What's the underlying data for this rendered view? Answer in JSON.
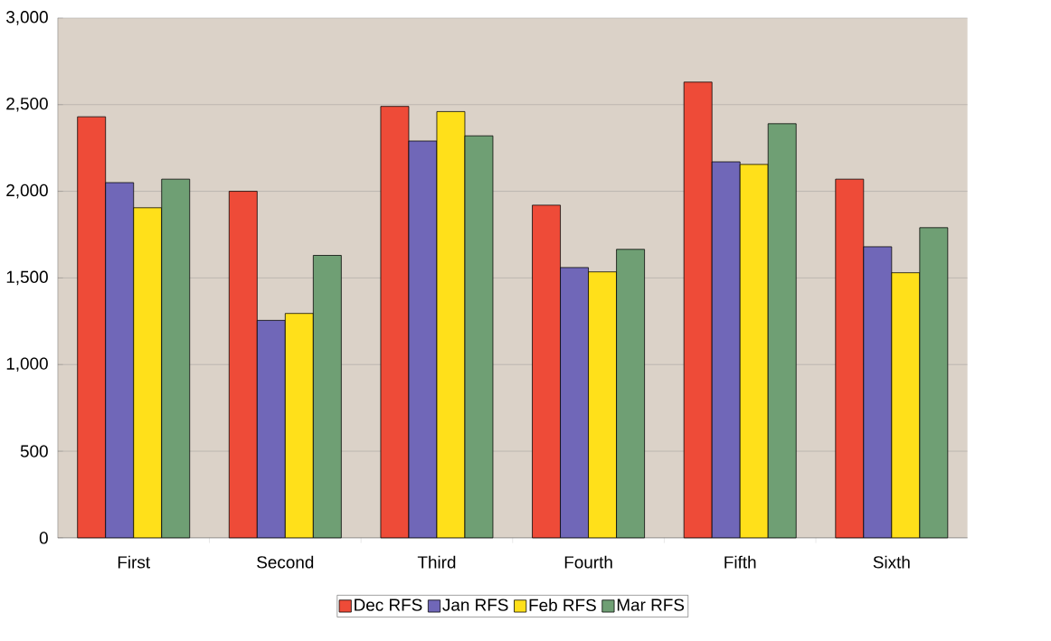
{
  "chart_data": {
    "type": "bar",
    "categories": [
      "First",
      "Second",
      "Third",
      "Fourth",
      "Fifth",
      "Sixth"
    ],
    "series": [
      {
        "name": "Dec RFS",
        "color": "#ee4b38",
        "values": [
          2430,
          2000,
          2490,
          1920,
          2630,
          2070
        ]
      },
      {
        "name": "Jan RFS",
        "color": "#7067b8",
        "values": [
          2050,
          1255,
          2290,
          1560,
          2170,
          1680
        ]
      },
      {
        "name": "Feb RFS",
        "color": "#ffe01a",
        "values": [
          1905,
          1295,
          2460,
          1535,
          2155,
          1530
        ]
      },
      {
        "name": "Mar RFS",
        "color": "#6f9f74",
        "values": [
          2070,
          1630,
          2320,
          1665,
          2390,
          1790
        ]
      }
    ],
    "ylim": [
      0,
      3000
    ],
    "yticks": [
      0,
      500,
      {
        "value": 1000,
        "label": "1,000"
      },
      {
        "value": 1500,
        "label": "1,500"
      },
      {
        "value": 2000,
        "label": "2,000"
      },
      {
        "value": 2500,
        "label": "2,500"
      },
      {
        "value": 3000,
        "label": "3,000"
      }
    ],
    "grid": "y",
    "legend": "bottom"
  }
}
